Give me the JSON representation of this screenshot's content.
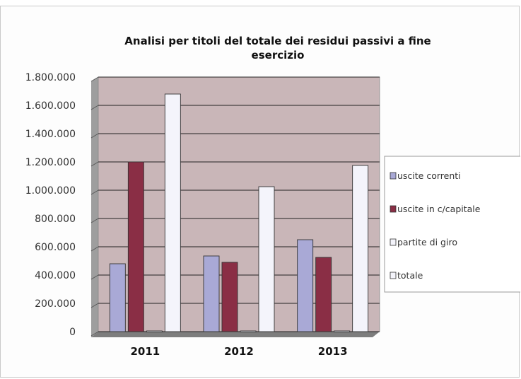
{
  "chart_data": {
    "type": "bar",
    "title_lines": [
      "Analisi per titoli del totale dei residui passivi a fine",
      "esercizio"
    ],
    "categories": [
      "2011",
      "2012",
      "2013"
    ],
    "series": [
      {
        "name": "uscite correnti",
        "color": "#a9a9d6",
        "values": [
          480000,
          535000,
          650000
        ]
      },
      {
        "name": "uscite in c/capitale",
        "color": "#8a2e45",
        "values": [
          1200000,
          490000,
          525000
        ]
      },
      {
        "name": "partite di giro",
        "color": "#f4f4fb",
        "values": [
          5000,
          5000,
          5000
        ]
      },
      {
        "name": "totale",
        "color": "#f4f4fb",
        "values": [
          1680000,
          1025000,
          1175000
        ]
      }
    ],
    "ylim": [
      0,
      1800000
    ],
    "yticks": [
      0,
      200000,
      400000,
      600000,
      800000,
      1000000,
      1200000,
      1400000,
      1600000,
      1800000
    ],
    "ytick_labels": [
      "0",
      "200.000",
      "400.000",
      "600.000",
      "800.000",
      "1.000.000",
      "1.200.000",
      "1.400.000",
      "1.600.000",
      "1.800.000"
    ],
    "grid": true,
    "legend_position": "right",
    "plot_background": "#c9b6b8"
  }
}
